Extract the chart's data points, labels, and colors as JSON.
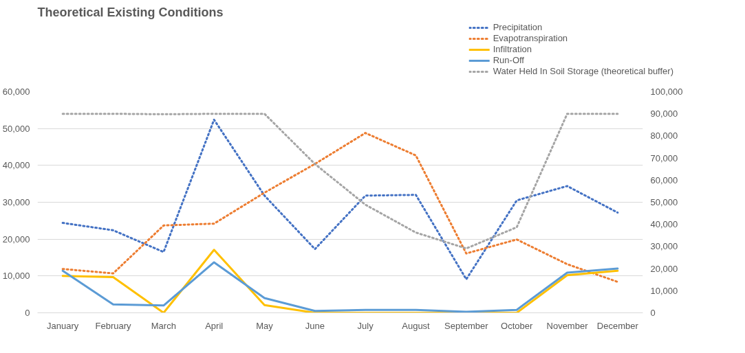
{
  "chart_data": {
    "type": "line",
    "title": "Theoretical Existing Conditions",
    "categories": [
      "January",
      "February",
      "March",
      "April",
      "May",
      "June",
      "July",
      "August",
      "September",
      "October",
      "November",
      "December"
    ],
    "series": [
      {
        "name": "Precipitation",
        "color": "#4472c4",
        "line_style": "dotted",
        "values": [
          24400,
          22400,
          16500,
          52400,
          31800,
          17300,
          31800,
          32000,
          9100,
          30500,
          34400,
          27200
        ]
      },
      {
        "name": "Evapotranspiration",
        "color": "#ed7d31",
        "line_style": "dotted",
        "values": [
          11900,
          10700,
          23700,
          24200,
          32600,
          40400,
          48800,
          42700,
          16100,
          19900,
          13200,
          8400
        ]
      },
      {
        "name": "Infiltration",
        "color": "#ffc000",
        "line_style": "solid",
        "values": [
          10000,
          9700,
          0,
          17100,
          2100,
          0,
          0,
          0,
          0,
          0,
          10200,
          11400
        ]
      },
      {
        "name": "Run-Off",
        "color": "#5b9bd5",
        "line_style": "solid",
        "values": [
          11400,
          2300,
          2000,
          13700,
          4000,
          500,
          800,
          800,
          300,
          800,
          10900,
          12000
        ]
      },
      {
        "name": "Water Held In Soil Storage (theoretical buffer)",
        "color": "#a5a5a5",
        "line_style": "dotted",
        "axis": "y2",
        "values": [
          90000,
          90000,
          89800,
          90000,
          90000,
          67300,
          48900,
          36300,
          29100,
          38700,
          90000,
          90000
        ]
      }
    ],
    "ylim": [
      0,
      60000
    ],
    "yticks": [
      {
        "value": 0,
        "label": "0"
      },
      {
        "value": 10000,
        "label": "10,000"
      },
      {
        "value": 20000,
        "label": "20,000"
      },
      {
        "value": 30000,
        "label": "30,000"
      },
      {
        "value": 40000,
        "label": "40,000"
      },
      {
        "value": 50000,
        "label": "50,000"
      },
      {
        "value": 60000,
        "label": "60,000"
      }
    ],
    "y2lim": [
      0,
      100000
    ],
    "y2ticks": [
      {
        "value": 0,
        "label": "0"
      },
      {
        "value": 10000,
        "label": "10,000"
      },
      {
        "value": 20000,
        "label": "20,000"
      },
      {
        "value": 30000,
        "label": "30,000"
      },
      {
        "value": 40000,
        "label": "40,000"
      },
      {
        "value": 50000,
        "label": "50,000"
      },
      {
        "value": 60000,
        "label": "60,000"
      },
      {
        "value": 70000,
        "label": "70,000"
      },
      {
        "value": 80000,
        "label": "80,000"
      },
      {
        "value": 90000,
        "label": "90,000"
      },
      {
        "value": 100000,
        "label": "100,000"
      }
    ],
    "grid": "y",
    "legend": "top right"
  }
}
